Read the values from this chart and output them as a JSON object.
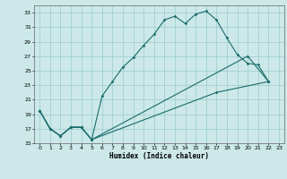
{
  "xlabel": "Humidex (Indice chaleur)",
  "bg_color": "#cce8e8",
  "grid_color": "#99cccc",
  "line_color": "#1a6b6b",
  "xlim": [
    -0.5,
    23.5
  ],
  "ylim": [
    15,
    34
  ],
  "xticks": [
    0,
    1,
    2,
    3,
    4,
    5,
    6,
    7,
    8,
    9,
    10,
    11,
    12,
    13,
    14,
    15,
    16,
    17,
    18,
    19,
    20,
    21,
    22,
    23
  ],
  "yticks": [
    15,
    17,
    19,
    21,
    23,
    25,
    27,
    29,
    31,
    33
  ],
  "series1_x": [
    0,
    1,
    2,
    3,
    4,
    5,
    6,
    7,
    8,
    9,
    10,
    11,
    12,
    13,
    14,
    15,
    16,
    17,
    18,
    19,
    20,
    21,
    22
  ],
  "series1_y": [
    19.5,
    17.0,
    16.0,
    17.2,
    17.2,
    15.5,
    21.5,
    23.5,
    25.5,
    26.8,
    28.5,
    30.0,
    32.0,
    32.5,
    31.5,
    32.8,
    33.2,
    32.0,
    29.5,
    27.2,
    26.0,
    25.8,
    23.5
  ],
  "series2_x": [
    0,
    1,
    2,
    3,
    4,
    5,
    17,
    22
  ],
  "series2_y": [
    19.5,
    17.0,
    16.0,
    17.2,
    17.2,
    15.5,
    22.0,
    23.5
  ],
  "series3_x": [
    0,
    1,
    2,
    3,
    4,
    5,
    20,
    22
  ],
  "series3_y": [
    19.5,
    17.0,
    16.0,
    17.2,
    17.2,
    15.5,
    27.0,
    23.5
  ]
}
